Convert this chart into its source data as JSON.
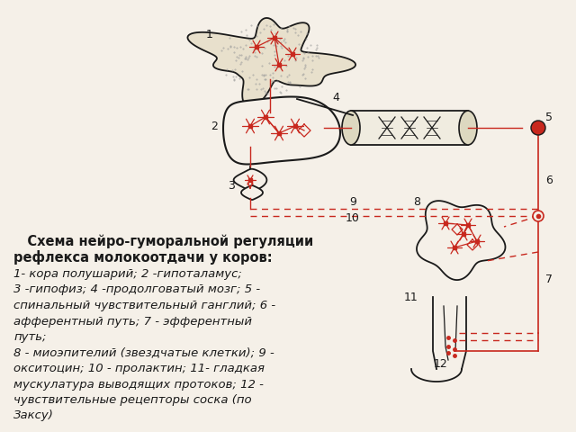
{
  "background_color": "#f5f0e8",
  "text_color": "#1a1a1a",
  "red_color": "#c8281e",
  "black_color": "#1a1a1a",
  "title_text": "   Схема нейро-гуморальной регуляции\nрефлекса молокоотдачи у коров:",
  "body_text": "1- кора полушарий; 2 -гипоталамус;\n3 -гипофиз; 4 -продолговатый мозг; 5 -\nспинальный чувствительный ганглий; 6 -\nафферентный путь; 7 - эфферентный\nпуть;\n8 - миоэпителий (звездчатые клетки); 9 -\nокситоцин; 10 - пролактин; 11- гладкая\nмускулатура выводящих протоков; 12 -\nчувствительные рецепторы соска (по\nЗаксу)"
}
